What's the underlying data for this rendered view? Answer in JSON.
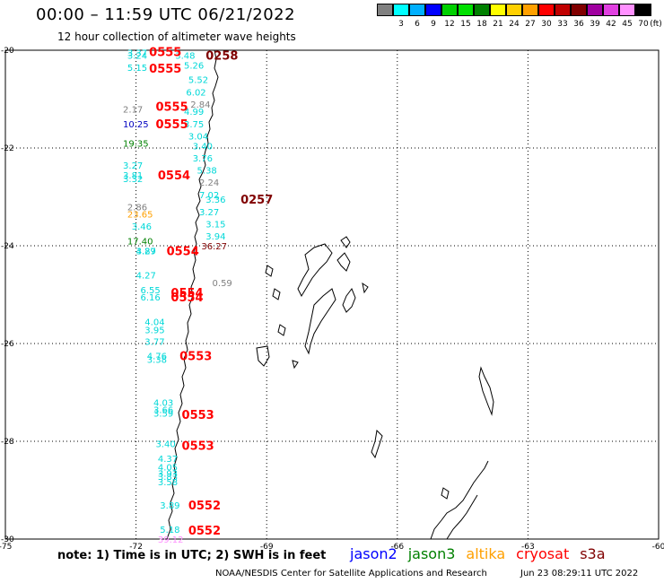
{
  "header": {
    "title": "00:00 – 11:59 UTC 06/21/2022",
    "subtitle": "12 hour collection of altimeter wave heights"
  },
  "scale": {
    "unit": "(ft)",
    "bins": [
      {
        "label": "",
        "color": "#808080"
      },
      {
        "label": "3",
        "color": "#00ffff"
      },
      {
        "label": "6",
        "color": "#00b0ff"
      },
      {
        "label": "9",
        "color": "#0000ff"
      },
      {
        "label": "12",
        "color": "#00d000"
      },
      {
        "label": "15",
        "color": "#00e000"
      },
      {
        "label": "18",
        "color": "#008000"
      },
      {
        "label": "21",
        "color": "#ffff00"
      },
      {
        "label": "24",
        "color": "#ffd000"
      },
      {
        "label": "27",
        "color": "#ffa000"
      },
      {
        "label": "30",
        "color": "#ff0000"
      },
      {
        "label": "33",
        "color": "#c00000"
      },
      {
        "label": "36",
        "color": "#800000"
      },
      {
        "label": "39",
        "color": "#a000a0"
      },
      {
        "label": "42",
        "color": "#e040e0"
      },
      {
        "label": "45",
        "color": "#ff90ff"
      },
      {
        "label": "70",
        "color": "#000000"
      }
    ]
  },
  "map": {
    "lon_range": [
      -75,
      -60
    ],
    "lat_range": [
      -30,
      -20
    ],
    "lon_ticks": [
      "-75",
      "-72",
      "-69",
      "-66",
      "-63",
      "-60"
    ],
    "lat_ticks": [
      "-20",
      "-22",
      "-24",
      "-26",
      "-28",
      "-30"
    ],
    "gridlines": true
  },
  "observations": [
    {
      "lat": -20.05,
      "lon": -72.2,
      "value": "3.37",
      "color": "#00d8d8"
    },
    {
      "lat": -20.1,
      "lon": -72.2,
      "value": "3.24",
      "color": "#00d8d8"
    },
    {
      "lat": -20.1,
      "lon": -71.1,
      "value": "3.48",
      "color": "#00d8d8"
    },
    {
      "lat": -20.35,
      "lon": -72.2,
      "value": "5.15",
      "color": "#00d8d8"
    },
    {
      "lat": -20.3,
      "lon": -70.9,
      "value": "5.26",
      "color": "#00d8d8"
    },
    {
      "lat": -20.6,
      "lon": -70.8,
      "value": "5.52",
      "color": "#00d8d8"
    },
    {
      "lat": -20.85,
      "lon": -70.85,
      "value": "6.02",
      "color": "#00d8d8"
    },
    {
      "lat": -21.1,
      "lon": -70.75,
      "value": "2.84",
      "color": "#808080"
    },
    {
      "lat": -21.2,
      "lon": -72.3,
      "value": "2.17",
      "color": "#808080"
    },
    {
      "lat": -21.25,
      "lon": -70.9,
      "value": "4.99",
      "color": "#00d8d8"
    },
    {
      "lat": -21.5,
      "lon": -72.3,
      "value": "10.25",
      "color": "#0000c0"
    },
    {
      "lat": -21.5,
      "lon": -70.9,
      "value": "3.75",
      "color": "#00d8d8"
    },
    {
      "lat": -21.75,
      "lon": -70.8,
      "value": "3.04",
      "color": "#00d8d8"
    },
    {
      "lat": -21.9,
      "lon": -72.3,
      "value": "19.35",
      "color": "#008000"
    },
    {
      "lat": -21.95,
      "lon": -70.7,
      "value": "3.40",
      "color": "#00d8d8"
    },
    {
      "lat": -22.2,
      "lon": -70.7,
      "value": "3.76",
      "color": "#00d8d8"
    },
    {
      "lat": -22.35,
      "lon": -72.3,
      "value": "3.27",
      "color": "#00d8d8"
    },
    {
      "lat": -22.45,
      "lon": -70.6,
      "value": "5.38",
      "color": "#00d8d8"
    },
    {
      "lat": -22.55,
      "lon": -72.3,
      "value": "3.81",
      "color": "#00d8d8"
    },
    {
      "lat": -22.62,
      "lon": -72.3,
      "value": "3.32",
      "color": "#00d8d8"
    },
    {
      "lat": -22.7,
      "lon": -70.55,
      "value": "2.24",
      "color": "#808080"
    },
    {
      "lat": -22.95,
      "lon": -70.55,
      "value": "7.02",
      "color": "#00d8d8"
    },
    {
      "lat": -23.05,
      "lon": -70.4,
      "value": "3.36",
      "color": "#00d8d8"
    },
    {
      "lat": -23.2,
      "lon": -72.2,
      "value": "2.86",
      "color": "#808080"
    },
    {
      "lat": -23.3,
      "lon": -70.55,
      "value": "3.27",
      "color": "#00d8d8"
    },
    {
      "lat": -23.35,
      "lon": -72.2,
      "value": "23.65",
      "color": "#ffa000"
    },
    {
      "lat": -23.55,
      "lon": -70.4,
      "value": "3.15",
      "color": "#00d8d8"
    },
    {
      "lat": -23.6,
      "lon": -72.1,
      "value": "3.46",
      "color": "#00d8d8"
    },
    {
      "lat": -23.8,
      "lon": -70.4,
      "value": "3.94",
      "color": "#00d8d8"
    },
    {
      "lat": -23.9,
      "lon": -72.2,
      "value": "17.40",
      "color": "#008000"
    },
    {
      "lat": -24.0,
      "lon": -70.5,
      "value": "36.27",
      "color": "#800000"
    },
    {
      "lat": -24.1,
      "lon": -72.0,
      "value": "3.89",
      "color": "#00d8d8"
    },
    {
      "lat": -24.1,
      "lon": -72.0,
      "value": "4.27",
      "color": "#00d8d8"
    },
    {
      "lat": -24.6,
      "lon": -72.0,
      "value": "4.27",
      "color": "#00d8d8"
    },
    {
      "lat": -24.75,
      "lon": -70.25,
      "value": "0.59",
      "color": "#808080"
    },
    {
      "lat": -24.9,
      "lon": -71.9,
      "value": "6.55",
      "color": "#00d8d8"
    },
    {
      "lat": -25.05,
      "lon": -71.9,
      "value": "6.16",
      "color": "#00d8d8"
    },
    {
      "lat": -25.55,
      "lon": -71.8,
      "value": "4.04",
      "color": "#00d8d8"
    },
    {
      "lat": -25.72,
      "lon": -71.8,
      "value": "3.95",
      "color": "#00d8d8"
    },
    {
      "lat": -25.95,
      "lon": -71.8,
      "value": "3.77",
      "color": "#00d8d8"
    },
    {
      "lat": -26.25,
      "lon": -71.75,
      "value": "4.76",
      "color": "#00d8d8"
    },
    {
      "lat": -26.32,
      "lon": -71.75,
      "value": "3.38",
      "color": "#00d8d8"
    },
    {
      "lat": -27.2,
      "lon": -71.6,
      "value": "4.03",
      "color": "#00d8d8"
    },
    {
      "lat": -27.35,
      "lon": -71.6,
      "value": "3.66",
      "color": "#00d8d8"
    },
    {
      "lat": -27.42,
      "lon": -71.6,
      "value": "3.59",
      "color": "#00d8d8"
    },
    {
      "lat": -28.05,
      "lon": -71.55,
      "value": "3.40",
      "color": "#00d8d8"
    },
    {
      "lat": -28.35,
      "lon": -71.5,
      "value": "4.37",
      "color": "#00d8d8"
    },
    {
      "lat": -28.52,
      "lon": -71.5,
      "value": "4.05",
      "color": "#00d8d8"
    },
    {
      "lat": -28.65,
      "lon": -71.5,
      "value": "3.93",
      "color": "#00d8d8"
    },
    {
      "lat": -28.72,
      "lon": -71.5,
      "value": "3.83",
      "color": "#00d8d8"
    },
    {
      "lat": -28.83,
      "lon": -71.5,
      "value": "3.58",
      "color": "#00d8d8"
    },
    {
      "lat": -29.3,
      "lon": -71.45,
      "value": "3.89",
      "color": "#00d8d8"
    },
    {
      "lat": -29.8,
      "lon": -71.45,
      "value": "5.18",
      "color": "#00d8d8"
    },
    {
      "lat": -30.0,
      "lon": -71.5,
      "value": "39.12",
      "color": "#ff90ff"
    }
  ],
  "pass_times": [
    {
      "lat": -20.03,
      "lon": -71.7,
      "value": "0555",
      "color": "#ff0000"
    },
    {
      "lat": -20.1,
      "lon": -70.4,
      "value": "0258",
      "color": "#800000"
    },
    {
      "lat": -20.37,
      "lon": -71.7,
      "value": "0555",
      "color": "#ff0000"
    },
    {
      "lat": -21.15,
      "lon": -71.55,
      "value": "0555",
      "color": "#ff0000"
    },
    {
      "lat": -21.5,
      "lon": -71.55,
      "value": "0555",
      "color": "#ff0000"
    },
    {
      "lat": -22.55,
      "lon": -71.5,
      "value": "0554",
      "color": "#ff0000"
    },
    {
      "lat": -23.05,
      "lon": -69.6,
      "value": "0257",
      "color": "#800000"
    },
    {
      "lat": -24.1,
      "lon": -71.3,
      "value": "0554",
      "color": "#ff0000"
    },
    {
      "lat": -24.95,
      "lon": -71.2,
      "value": "0554",
      "color": "#ff0000"
    },
    {
      "lat": -25.05,
      "lon": -71.2,
      "value": "0554",
      "color": "#ff0000"
    },
    {
      "lat": -26.25,
      "lon": -71.0,
      "value": "0553",
      "color": "#ff0000"
    },
    {
      "lat": -27.45,
      "lon": -70.95,
      "value": "0553",
      "color": "#ff0000"
    },
    {
      "lat": -28.08,
      "lon": -70.95,
      "value": "0553",
      "color": "#ff0000"
    },
    {
      "lat": -29.3,
      "lon": -70.8,
      "value": "0552",
      "color": "#ff0000"
    },
    {
      "lat": -29.82,
      "lon": -70.8,
      "value": "0552",
      "color": "#ff0000"
    }
  ],
  "footer": {
    "note": "note: 1) Time is in UTC; 2) SWH is in feet",
    "missions": [
      {
        "name": "jason2",
        "color": "#0000ff"
      },
      {
        "name": "jason3",
        "color": "#008000"
      },
      {
        "name": "altika",
        "color": "#ffa000"
      },
      {
        "name": "cryosat",
        "color": "#ff0000"
      },
      {
        "name": "s3a",
        "color": "#800000"
      }
    ],
    "credit": "NOAA/NESDIS Center for Satellite Applications and Research",
    "timestamp": "Jun 23 08:29:11 UTC 2022"
  }
}
